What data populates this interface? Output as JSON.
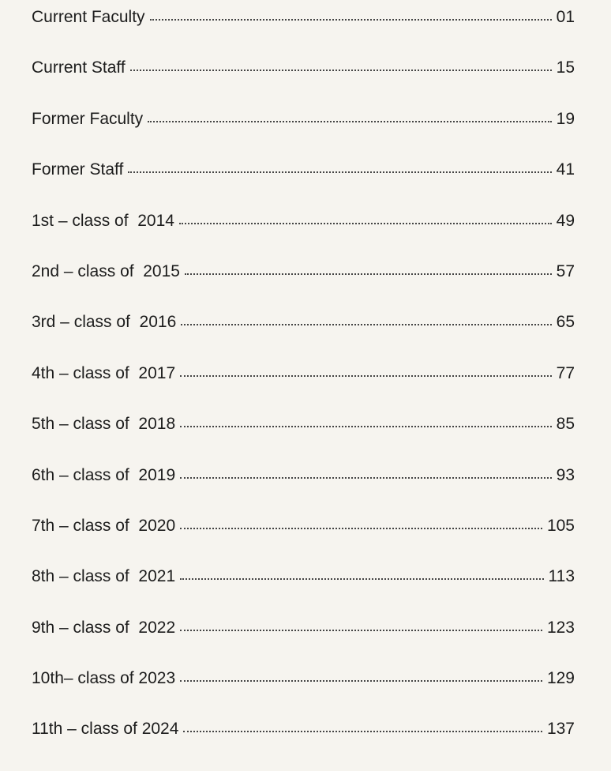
{
  "toc": {
    "entries": [
      {
        "label": "Current Faculty",
        "page": "01"
      },
      {
        "label": "Current Staff",
        "page": "15"
      },
      {
        "label": "Former Faculty",
        "page": "19"
      },
      {
        "label": "Former Staff",
        "page": "41"
      },
      {
        "label": "1st – class of  2014",
        "page": "49"
      },
      {
        "label": "2nd – class of  2015",
        "page": "57"
      },
      {
        "label": "3rd – class of  2016",
        "page": "65"
      },
      {
        "label": "4th – class of  2017",
        "page": "77"
      },
      {
        "label": "5th – class of  2018",
        "page": "85"
      },
      {
        "label": "6th – class of  2019",
        "page": "93"
      },
      {
        "label": "7th – class of  2020",
        "page": "105"
      },
      {
        "label": "8th – class of  2021",
        "page": "113"
      },
      {
        "label": "9th – class of  2022",
        "page": "123"
      },
      {
        "label": "10th– class of 2023",
        "page": "129"
      },
      {
        "label": "11th – class of 2024",
        "page": "137"
      }
    ]
  }
}
